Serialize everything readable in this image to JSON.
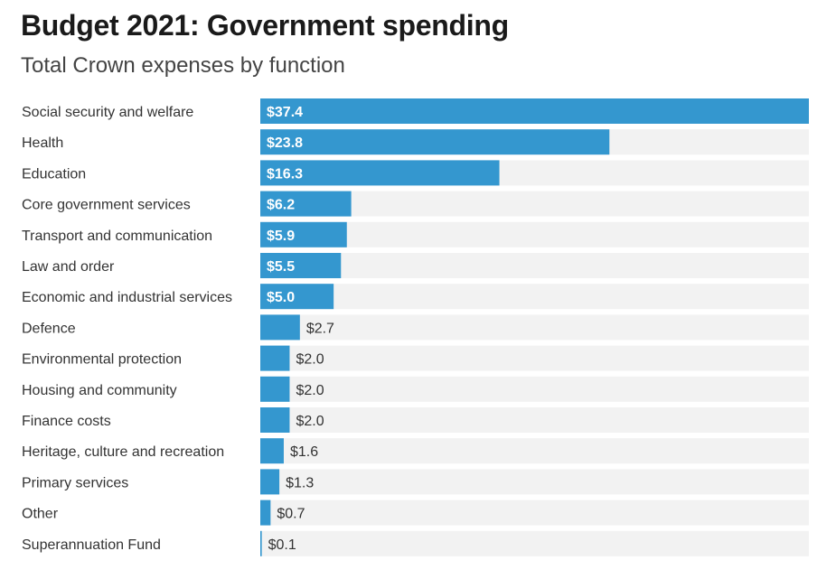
{
  "chart_data": {
    "type": "bar",
    "orientation": "horizontal",
    "title": "Budget 2021: Government spending",
    "subtitle": "Total Crown expenses by function",
    "xlim": [
      0,
      37.4
    ],
    "categories": [
      "Social security and welfare",
      "Health",
      "Education",
      "Core government services",
      "Transport and communication",
      "Law and order",
      "Economic and industrial services",
      "Defence",
      "Environmental protection",
      "Housing and community",
      "Finance costs",
      "Heritage, culture and recreation",
      "Primary services",
      "Other",
      "Superannuation Fund"
    ],
    "values": [
      37.4,
      23.8,
      16.3,
      6.2,
      5.9,
      5.5,
      5.0,
      2.7,
      2.0,
      2.0,
      2.0,
      1.6,
      1.3,
      0.7,
      0.1
    ],
    "value_labels": [
      "$37.4",
      "$23.8",
      "$16.3",
      "$6.2",
      "$5.9",
      "$5.5",
      "$5.0",
      "$2.7",
      "$2.0",
      "$2.0",
      "$2.0",
      "$1.6",
      "$1.3",
      "$0.7",
      "$0.1"
    ],
    "colors": {
      "bar": "#3497cf",
      "track": "#f2f2f2"
    }
  }
}
